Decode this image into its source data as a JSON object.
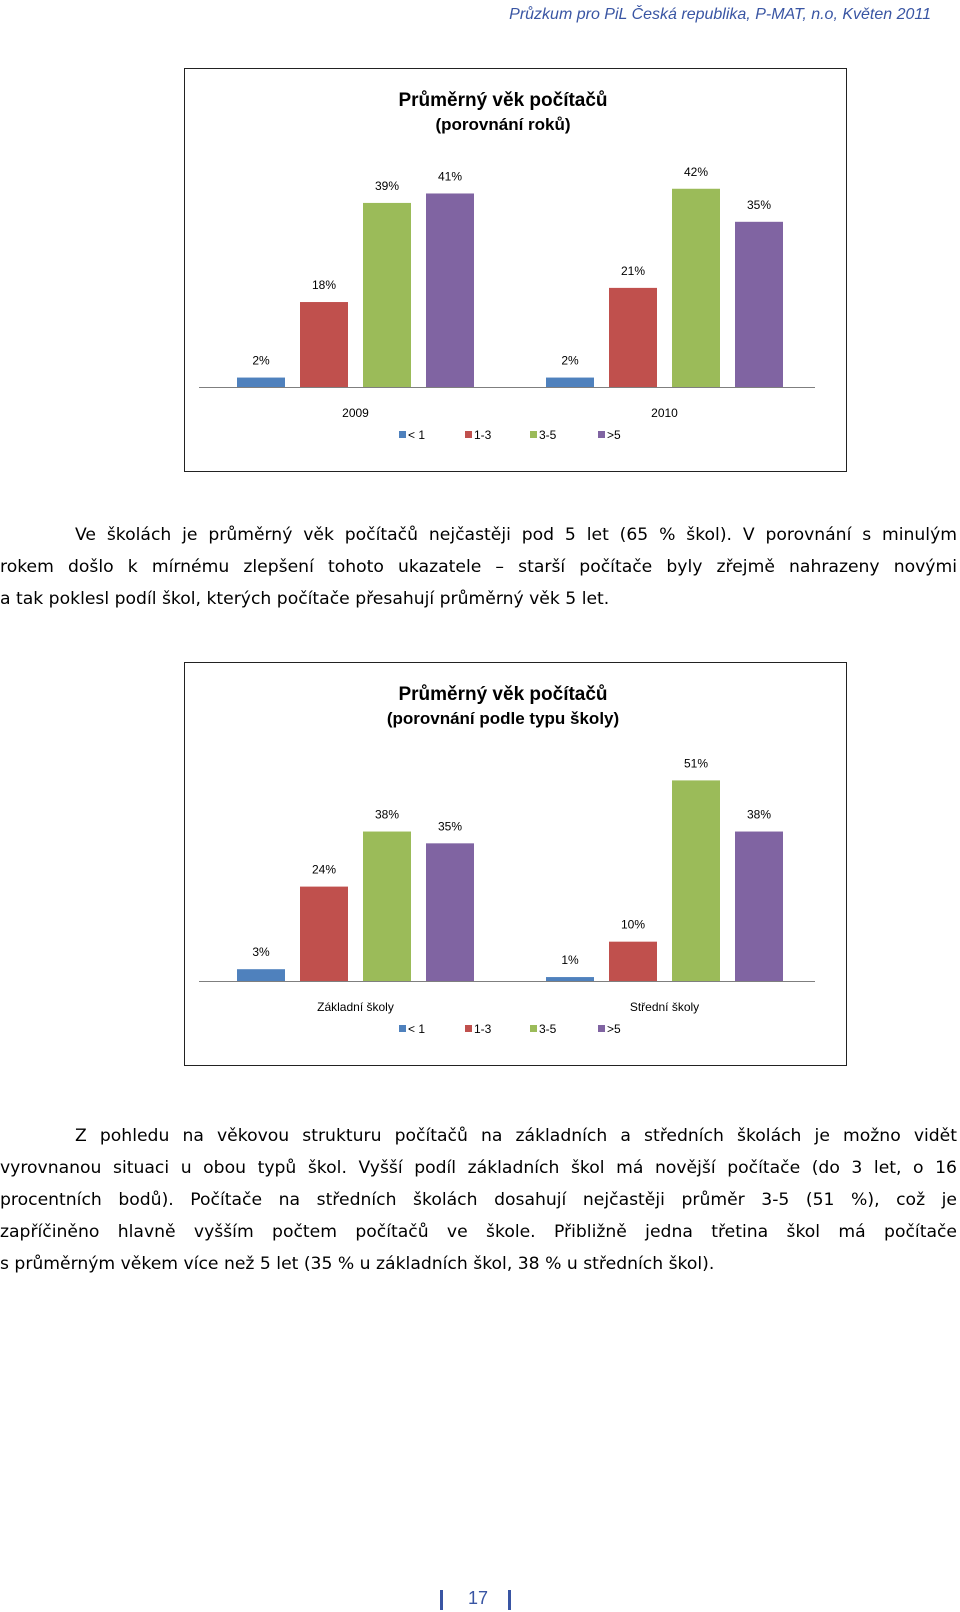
{
  "header": {
    "text": "Průzkum pro PiL Česká republika, P-MAT, n.o, Květen 2011"
  },
  "colors": {
    "lt1": "#4f81bd",
    "y1_3": "#c0504d",
    "y3_5": "#9bbb59",
    "gt5": "#8064a2",
    "accent": "#3955a3"
  },
  "chart_data": [
    {
      "type": "bar",
      "title": "Průměrný věk počítačů",
      "subtitle": "(porovnání roků)",
      "categories": [
        "2009",
        "2010"
      ],
      "series": [
        {
          "name": "< 1",
          "values": [
            2,
            2
          ],
          "labels": [
            "2%",
            "2%"
          ]
        },
        {
          "name": "1-3",
          "values": [
            18,
            21
          ],
          "labels": [
            "18%",
            "21%"
          ]
        },
        {
          "name": "3-5",
          "values": [
            39,
            42
          ],
          "labels": [
            "39%",
            "42%"
          ]
        },
        {
          "name": ">5",
          "values": [
            41,
            35
          ],
          "labels": [
            "41%",
            "35%"
          ]
        }
      ],
      "ylim": [
        0,
        50
      ],
      "legend": "bottom"
    },
    {
      "type": "bar",
      "title": "Průměrný věk počítačů",
      "subtitle": "(porovnání podle typu školy)",
      "categories": [
        "Základní školy",
        "Střední školy"
      ],
      "series": [
        {
          "name": "< 1",
          "values": [
            3,
            1
          ],
          "labels": [
            "3%",
            "1%"
          ]
        },
        {
          "name": "1-3",
          "values": [
            24,
            10
          ],
          "labels": [
            "24%",
            "10%"
          ]
        },
        {
          "name": "3-5",
          "values": [
            38,
            51
          ],
          "labels": [
            "38%",
            "51%"
          ]
        },
        {
          "name": ">5",
          "values": [
            35,
            38
          ],
          "labels": [
            "35%",
            "38%"
          ]
        }
      ],
      "ylim": [
        0,
        60
      ],
      "legend": "bottom"
    }
  ],
  "paragraph1": {
    "lines": [
      "Ve školách je průměrný věk počítačů nejčastěji pod 5 let (65 % škol). V porovnání s minulým",
      "rokem došlo k mírnému zlepšení tohoto ukazatele – starší počítače byly zřejmě nahrazeny novými",
      "a tak poklesl podíl škol, kterých počítače přesahují průměrný věk 5 let."
    ]
  },
  "paragraph2": {
    "lines": [
      "Z pohledu na věkovou strukturu počítačů na základních a středních školách je možno vidět",
      "vyrovnanou situaci u obou typů škol. Vyšší podíl základních škol má novější počítače (do 3 let, o 16",
      "procentních bodů). Počítače na středních školách dosahují nejčastěji průměr 3-5 (51 %), což je",
      "zapříčiněno hlavně vyšším počtem počítačů ve škole. Přibližně jedna třetina škol má počítače",
      "s průměrným věkem více než 5 let (35 % u základních škol, 38 % u středních škol)."
    ]
  },
  "page_number": "17"
}
